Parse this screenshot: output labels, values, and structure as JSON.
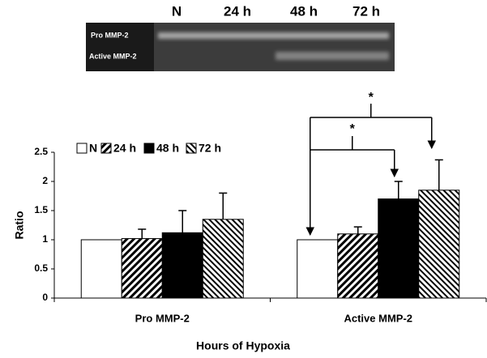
{
  "gel": {
    "lanes": [
      "N",
      "24 h",
      "48 h",
      "72 h"
    ],
    "bands": [
      "Pro MMP-2",
      "Active MMP-2"
    ]
  },
  "chart_data": {
    "type": "bar",
    "categories": [
      "Pro MMP-2",
      "Active MMP-2"
    ],
    "series": [
      {
        "name": "N",
        "color": "#ffffff",
        "values": [
          1.0,
          1.0
        ]
      },
      {
        "name": "24 h",
        "color": "#ffffff",
        "hatch": "forward",
        "values": [
          1.02,
          1.1
        ],
        "errors": [
          0.16,
          0.12
        ]
      },
      {
        "name": "48 h",
        "color": "#000000",
        "values": [
          1.12,
          1.7
        ],
        "errors": [
          0.38,
          0.3
        ]
      },
      {
        "name": "72 h",
        "color": "#ffffff",
        "hatch": "backward",
        "values": [
          1.35,
          1.85
        ],
        "errors": [
          0.45,
          0.52
        ]
      }
    ],
    "ylim": [
      0,
      2.5
    ],
    "yticks": [
      0,
      0.5,
      1,
      1.5,
      2,
      2.5
    ],
    "ylabel": "Ratio",
    "xlabel": "Hours of Hypoxia",
    "annotations": [
      "*",
      "*"
    ],
    "legend": "top-left"
  }
}
